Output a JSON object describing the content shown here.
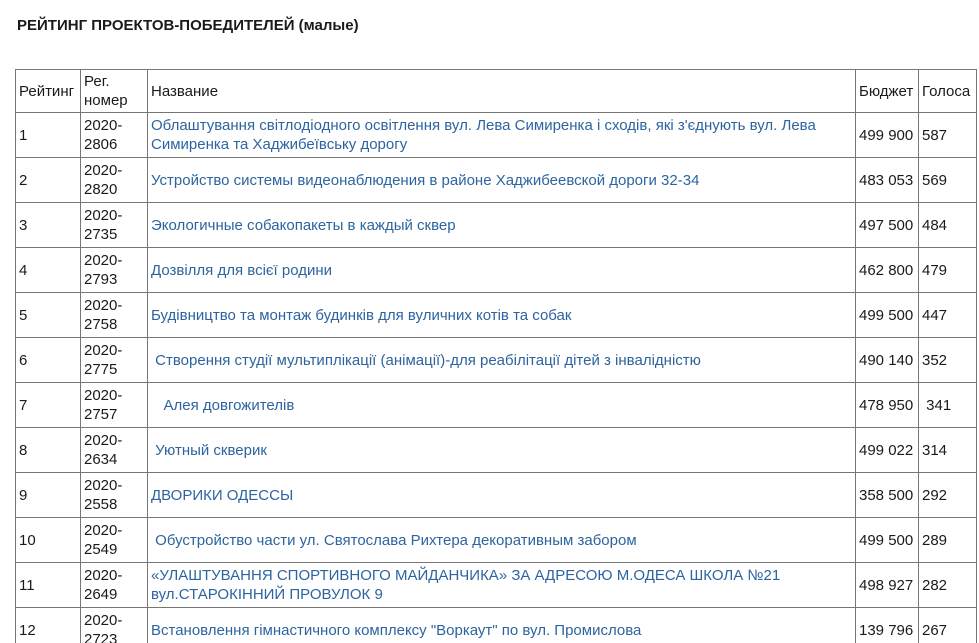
{
  "page": {
    "title": "РЕЙТИНГ ПРОЕКТОВ-ПОБЕДИТЕЛЕЙ (малые)"
  },
  "colors": {
    "link_blue": "#2d64a0",
    "table_border": "#767676",
    "text": "#1a1a1a",
    "background": "#ffffff"
  },
  "table": {
    "headers": {
      "rank": "Рейтинг",
      "reg": "Рег. номер",
      "name": "Название",
      "budget": "Бюджет",
      "votes": "Голоса"
    },
    "rows": [
      {
        "rank": "1",
        "reg": "2020-2806",
        "name": "Облаштування світлодіодного освітлення вул. Лева Симиренка і сходів, які з'єднують вул. Лева Симиренка та Хаджибеївську дорогу",
        "budget": "499 900",
        "votes": "587"
      },
      {
        "rank": "2",
        "reg": "2020-2820",
        "name": "Устройство системы видеонаблюдения в районе Хаджибеевской дороги 32-34",
        "budget": "483 053",
        "votes": "569"
      },
      {
        "rank": "3",
        "reg": "2020-2735",
        "name": "Экологичные собакопакеты в каждый сквер",
        "budget": "497 500",
        "votes": "484"
      },
      {
        "rank": "4",
        "reg": "2020-2793",
        "name": "Дозвілля для всієї родини",
        "budget": "462 800",
        "votes": "479"
      },
      {
        "rank": "5",
        "reg": "2020-2758",
        "name": "Будівництво та монтаж будинків для вуличних котів та собак",
        "budget": "499 500",
        "votes": "447"
      },
      {
        "rank": "6",
        "reg": "2020-2775",
        "name": " Створення студії мультиплікації (анімації)-для реабілітації дітей з інвалідністю",
        "budget": "490 140",
        "votes": "352"
      },
      {
        "rank": "7",
        "reg": "2020-2757",
        "name": "   Алея довгожителів",
        "budget": "478 950",
        "votes": " 341"
      },
      {
        "rank": "8",
        "reg": "2020-2634",
        "name": " Уютный скверик",
        "budget": "499 022",
        "votes": "314"
      },
      {
        "rank": "9",
        "reg": "2020-2558",
        "name": "ДВОРИКИ ОДЕССЫ",
        "budget": "358 500",
        "votes": "292"
      },
      {
        "rank": "10",
        "reg": "2020-2549",
        "name": " Обустройство части ул. Святослава Рихтера декоративным забором",
        "budget": "499 500",
        "votes": "289"
      },
      {
        "rank": "11",
        "reg": "2020-2649",
        "name": "«УЛАШТУВАННЯ СПОРТИВНОГО МАЙДАНЧИКА» ЗА АДРЕСОЮ М.ОДЕСА ШКОЛА №21 вул.СТАРОКІННИЙ ПРОВУЛОК 9",
        "budget": "498 927",
        "votes": "282"
      },
      {
        "rank": "12",
        "reg": "2020-2723",
        "name": "Встановлення гімнастичного комплексу \"Воркаут\" по вул. Промислова",
        "budget": "139 796",
        "votes": "267"
      }
    ]
  }
}
